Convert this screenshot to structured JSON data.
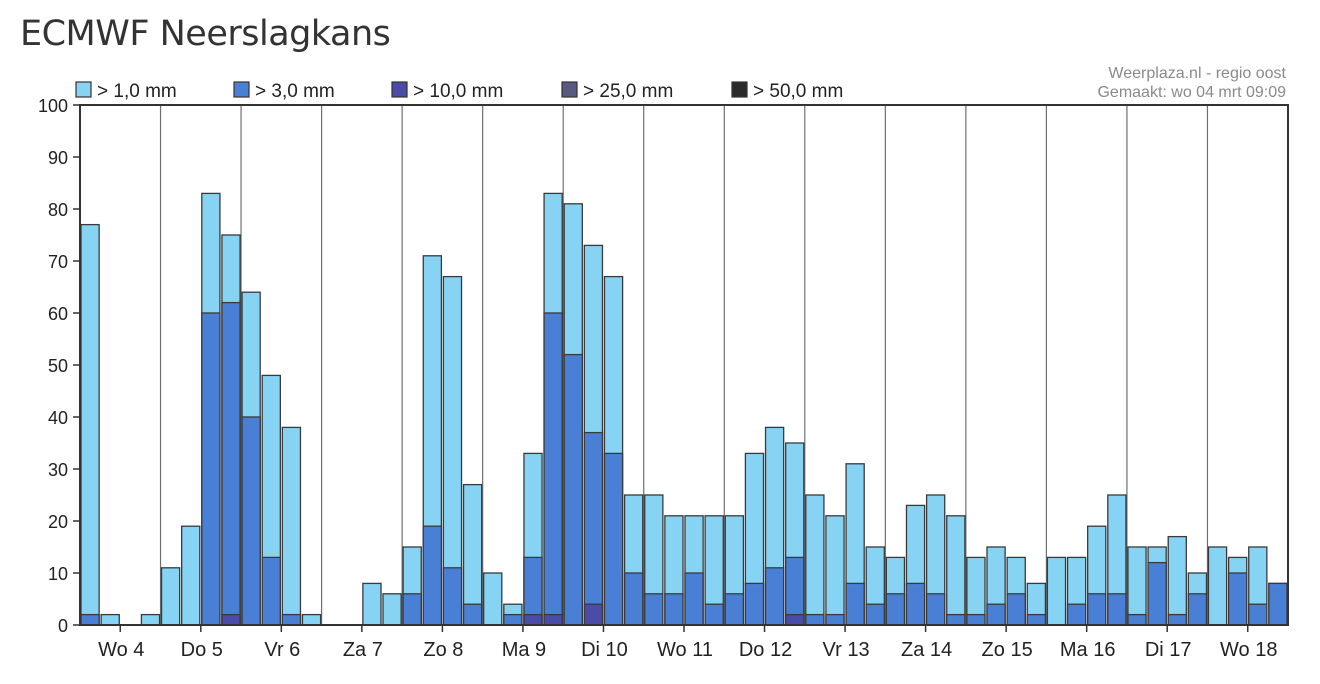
{
  "title": "ECMWF Neerslagkans",
  "credit": {
    "line1": "Weerplaza.nl - regio oost",
    "line2": "Gemaakt: wo 04 mrt 09:09"
  },
  "chart_data": {
    "type": "bar",
    "stacked": true,
    "ylim": [
      0,
      100
    ],
    "yticks": [
      0,
      10,
      20,
      30,
      40,
      50,
      60,
      70,
      80,
      90,
      100
    ],
    "grid": "vertical day separators",
    "legend_position": "top-left",
    "xticks": [
      "Wo 4",
      "Do 5",
      "Vr 6",
      "Za 7",
      "Zo 8",
      "Ma 9",
      "Di 10",
      "Wo 11",
      "Do 12",
      "Vr 13",
      "Za 14",
      "Zo 15",
      "Ma 16",
      "Di 17",
      "Wo 18"
    ],
    "series": [
      {
        "name": "> 1,0 mm",
        "color": "#87d3f3",
        "values": [
          77,
          2,
          0,
          2,
          11,
          19,
          83,
          75,
          64,
          48,
          38,
          2,
          0,
          0,
          8,
          6,
          15,
          71,
          67,
          27,
          10,
          4,
          33,
          83,
          81,
          73,
          67,
          25,
          25,
          21,
          21,
          21,
          21,
          33,
          38,
          35,
          25,
          21,
          31,
          15,
          13,
          23,
          25,
          21,
          13,
          15,
          13,
          8,
          13,
          13,
          19,
          25,
          15,
          15,
          17,
          10,
          15,
          13,
          15,
          8
        ]
      },
      {
        "name": "> 3,0 mm",
        "color": "#4a7fd6",
        "values": [
          2,
          0,
          0,
          0,
          0,
          0,
          60,
          62,
          40,
          13,
          2,
          0,
          0,
          0,
          0,
          0,
          6,
          19,
          11,
          4,
          0,
          2,
          13,
          60,
          52,
          37,
          33,
          10,
          6,
          6,
          10,
          4,
          6,
          8,
          11,
          13,
          2,
          2,
          8,
          4,
          6,
          8,
          6,
          2,
          2,
          4,
          6,
          2,
          0,
          4,
          6,
          6,
          2,
          12,
          2,
          6,
          0,
          10,
          4,
          8
        ]
      },
      {
        "name": "> 10,0 mm",
        "color": "#4b4ba8",
        "values": [
          0,
          0,
          0,
          0,
          0,
          0,
          0,
          2,
          0,
          0,
          0,
          0,
          0,
          0,
          0,
          0,
          0,
          0,
          0,
          0,
          0,
          0,
          2,
          2,
          0,
          4,
          0,
          0,
          0,
          0,
          0,
          0,
          0,
          0,
          0,
          2,
          0,
          0,
          0,
          0,
          0,
          0,
          0,
          0,
          0,
          0,
          0,
          0,
          0,
          0,
          0,
          0,
          0,
          0,
          0,
          0,
          0,
          0,
          0,
          0
        ]
      },
      {
        "name": "> 25,0 mm",
        "color": "#5a5a80",
        "values": []
      },
      {
        "name": "> 50,0 mm",
        "color": "#2b2b2b",
        "values": []
      }
    ]
  }
}
